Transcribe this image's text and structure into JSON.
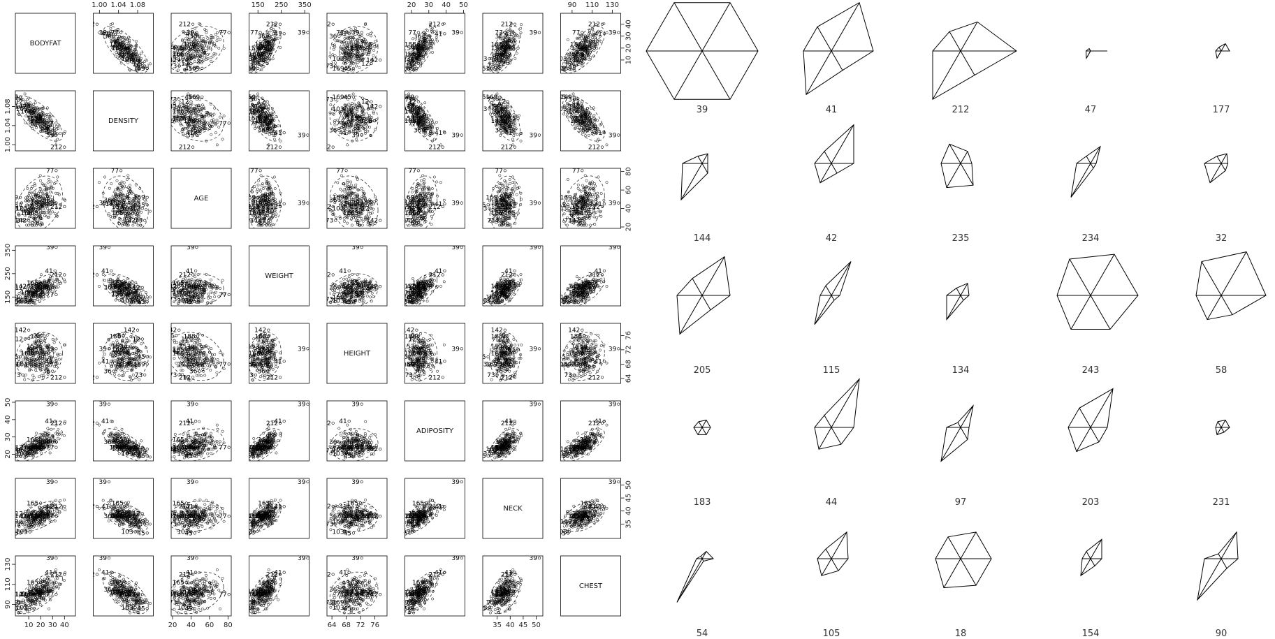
{
  "chart_data": [
    {
      "type": "scatter",
      "variables": [
        "BODYFAT",
        "DENSITY",
        "AGE",
        "WEIGHT",
        "HEIGHT",
        "ADIPOSITY",
        "NECK",
        "CHEST"
      ],
      "diagonal_labels": [
        "BODYFAT",
        "DENSITY",
        "AGE",
        "WEIGHT",
        "HEIGHT",
        "ADIPOSITY",
        "NECK",
        "CHEST"
      ],
      "ranges": {
        "BODYFAT": [
          0,
          48
        ],
        "DENSITY": [
          0.99,
          1.11
        ],
        "AGE": [
          20,
          82
        ],
        "WEIGHT": [
          118,
          363
        ],
        "HEIGHT": [
          63,
          79
        ],
        "ADIPOSITY": [
          17,
          50
        ],
        "NECK": [
          30,
          52
        ],
        "CHEST": [
          80,
          137
        ]
      },
      "ticks": {
        "BODYFAT": [
          10,
          20,
          30,
          40
        ],
        "DENSITY": [
          1.0,
          1.04,
          1.08
        ],
        "AGE": [
          20,
          40,
          60,
          80
        ],
        "WEIGHT": [
          150,
          250,
          350
        ],
        "HEIGHT": [
          64,
          68,
          72,
          76
        ],
        "ADIPOSITY": [
          20,
          30,
          40,
          50
        ],
        "NECK": [
          35,
          40,
          45,
          50
        ],
        "CHEST": [
          90,
          110,
          130
        ]
      },
      "tick_labels": {
        "top": [
          "1.00",
          "1.04",
          "1.08",
          "150",
          "250",
          "350",
          "20",
          "30",
          "40",
          "50",
          "90",
          "110",
          "130"
        ],
        "right": [
          "10",
          "20",
          "30",
          "40",
          "20",
          "40",
          "60",
          "80",
          "64",
          "68",
          "72",
          "76",
          "35",
          "40",
          "45",
          "50"
        ],
        "left": [
          "1.00",
          "1.04",
          "1.08",
          "150",
          "250",
          "350",
          "20",
          "30",
          "40",
          "50",
          "90",
          "110",
          "130"
        ],
        "bottom": [
          "10",
          "20",
          "30",
          "40",
          "20",
          "40",
          "60",
          "80",
          "64",
          "68",
          "72",
          "76",
          "35",
          "40",
          "45",
          "50"
        ]
      },
      "point_labels": [
        "39",
        "41",
        "212",
        "36",
        "188",
        "77",
        "169",
        "12",
        "142",
        "166",
        "73",
        "45",
        "103",
        "165",
        "153",
        "6"
      ],
      "labeled_points": [
        {
          "label": "39",
          "BODYFAT": 33,
          "DENSITY": 1.02,
          "AGE": 46,
          "WEIGHT": 363,
          "HEIGHT": 72.3,
          "ADIPOSITY": 48.9,
          "NECK": 51.2,
          "CHEST": 136.2
        },
        {
          "label": "41",
          "BODYFAT": 32,
          "DENSITY": 1.025,
          "AGE": 45,
          "WEIGHT": 262,
          "HEIGHT": 68.8,
          "ADIPOSITY": 39.1,
          "NECK": 41.7,
          "CHEST": 122
        },
        {
          "label": "212",
          "BODYFAT": 40,
          "DENSITY": 0.995,
          "AGE": 42,
          "WEIGHT": 245,
          "HEIGHT": 64.3,
          "ADIPOSITY": 38,
          "NECK": 41.8,
          "CHEST": 120
        },
        {
          "label": "36",
          "BODYFAT": 30,
          "DENSITY": 1.03,
          "AGE": 49,
          "WEIGHT": 191,
          "HEIGHT": 66,
          "ADIPOSITY": 27,
          "NECK": 38,
          "CHEST": 105
        },
        {
          "label": "188",
          "BODYFAT": 23,
          "DENSITY": 1.05,
          "AGE": 47,
          "WEIGHT": 196,
          "HEIGHT": 75.8,
          "ADIPOSITY": 24,
          "NECK": 38,
          "CHEST": 102
        },
        {
          "label": "77",
          "BODYFAT": 33,
          "DENSITY": 1.045,
          "AGE": 81,
          "WEIGHT": 160,
          "HEIGHT": 68,
          "ADIPOSITY": 24,
          "NECK": 38,
          "CHEST": 100
        },
        {
          "label": "169",
          "BODYFAT": 3,
          "DENSITY": 1.1,
          "AGE": 52,
          "WEIGHT": 150,
          "HEIGHT": 68,
          "ADIPOSITY": 23,
          "NECK": 36,
          "CHEST": 92
        },
        {
          "label": "12",
          "BODYFAT": 7,
          "DENSITY": 1.09,
          "AGE": 40,
          "WEIGHT": 190,
          "HEIGHT": 75,
          "ADIPOSITY": 24,
          "NECK": 39,
          "CHEST": 100
        },
        {
          "label": "142",
          "BODYFAT": 10,
          "DENSITY": 1.08,
          "AGE": 27,
          "WEIGHT": 195,
          "HEIGHT": 77.5,
          "ADIPOSITY": 23,
          "NECK": 38,
          "CHEST": 100
        },
        {
          "label": "166",
          "BODYFAT": 15,
          "DENSITY": 1.07,
          "AGE": 35,
          "WEIGHT": 170,
          "HEIGHT": 71,
          "ADIPOSITY": 24,
          "NECK": 38,
          "CHEST": 100
        },
        {
          "label": "73",
          "BODYFAT": 5,
          "DENSITY": 1.095,
          "AGE": 27,
          "WEIGHT": 140,
          "HEIGHT": 65,
          "ADIPOSITY": 22,
          "NECK": 35,
          "CHEST": 92
        },
        {
          "label": "45",
          "BODYFAT": 3,
          "DENSITY": 1.1,
          "AGE": 44,
          "WEIGHT": 130,
          "HEIGHT": 70,
          "ADIPOSITY": 19,
          "NECK": 31.5,
          "CHEST": 86
        },
        {
          "label": "103",
          "BODYFAT": 11,
          "DENSITY": 1.075,
          "AGE": 40,
          "WEIGHT": 135,
          "HEIGHT": 68,
          "ADIPOSITY": 20.5,
          "NECK": 32,
          "CHEST": 87
        },
        {
          "label": "165",
          "BODYFAT": 20,
          "DENSITY": 1.055,
          "AGE": 35,
          "WEIGHT": 210,
          "HEIGHT": 72,
          "ADIPOSITY": 28.5,
          "NECK": 43,
          "CHEST": 112
        },
        {
          "label": "153",
          "BODYFAT": 20,
          "DENSITY": 1.055,
          "AGE": 42,
          "WEIGHT": 165,
          "HEIGHT": 73,
          "ADIPOSITY": 23,
          "NECK": 38,
          "CHEST": 103
        },
        {
          "label": "6",
          "BODYFAT": 21,
          "DENSITY": 1.05,
          "AGE": 24,
          "WEIGHT": 180,
          "HEIGHT": 76,
          "ADIPOSITY": 23,
          "NECK": 39,
          "CHEST": 102
        }
      ],
      "ellipses": "dashed concentration ellipses in every off-diagonal panel",
      "grid": false
    },
    {
      "type": "star",
      "labels": [
        "39",
        "41",
        "212",
        "47",
        "177",
        "144",
        "42",
        "235",
        "234",
        "32",
        "205",
        "115",
        "134",
        "243",
        "58",
        "183",
        "44",
        "97",
        "203",
        "231",
        "54",
        "105",
        "18",
        "154",
        "90"
      ],
      "rays": [
        "r1",
        "r2",
        "r3",
        "r4",
        "r5",
        "r6"
      ],
      "stars": [
        {
          "label": "39",
          "values": [
            1.0,
            1.0,
            1.0,
            1.0,
            1.0,
            1.0
          ]
        },
        {
          "label": "41",
          "values": [
            0.75,
            1.0,
            0.5,
            0.5,
            0.9,
            0.4
          ]
        },
        {
          "label": "212",
          "values": [
            1.0,
            0.6,
            0.4,
            0.5,
            1.0,
            0.5
          ]
        },
        {
          "label": "47",
          "values": [
            0.3,
            0.0,
            0.05,
            0.08,
            0.15,
            0.0
          ]
        },
        {
          "label": "177",
          "values": [
            0.15,
            0.15,
            0.08,
            0.1,
            0.15,
            0.0
          ]
        },
        {
          "label": "144",
          "values": [
            0.1,
            0.2,
            0.15,
            0.35,
            0.75,
            0.2
          ]
        },
        {
          "label": "42",
          "values": [
            0.4,
            0.8,
            0.25,
            0.3,
            0.4,
            0.2
          ]
        },
        {
          "label": "235",
          "values": [
            0.2,
            0.25,
            0.4,
            0.35,
            0.5,
            0.45
          ]
        },
        {
          "label": "234",
          "values": [
            0.1,
            0.35,
            0.15,
            0.25,
            0.7,
            0.1
          ]
        },
        {
          "label": "32",
          "values": [
            0.12,
            0.2,
            0.15,
            0.3,
            0.4,
            0.15
          ]
        },
        {
          "label": "205",
          "values": [
            0.5,
            0.8,
            0.35,
            0.45,
            0.8,
            0.3
          ]
        },
        {
          "label": "115",
          "values": [
            0.15,
            0.7,
            0.2,
            0.2,
            0.6,
            0.1
          ]
        },
        {
          "label": "134",
          "values": [
            0.15,
            0.25,
            0.15,
            0.25,
            0.5,
            0.1
          ]
        },
        {
          "label": "243",
          "values": [
            0.85,
            0.85,
            0.75,
            0.6,
            0.7,
            0.7
          ]
        },
        {
          "label": "58",
          "values": [
            0.8,
            0.9,
            0.7,
            0.45,
            0.5,
            0.4
          ]
        },
        {
          "label": "183",
          "values": [
            0.15,
            0.15,
            0.12,
            0.15,
            0.15,
            0.15
          ]
        },
        {
          "label": "44",
          "values": [
            0.4,
            1.0,
            0.25,
            0.3,
            0.45,
            0.35
          ]
        },
        {
          "label": "97",
          "values": [
            0.15,
            0.45,
            0.1,
            0.25,
            0.7,
            0.25
          ]
        },
        {
          "label": "203",
          "values": [
            0.3,
            0.8,
            0.4,
            0.4,
            0.5,
            0.3
          ]
        },
        {
          "label": "231",
          "values": [
            0.15,
            0.15,
            0.12,
            0.1,
            0.15,
            0.1
          ]
        },
        {
          "label": "54",
          "values": [
            0.2,
            0.15,
            0.05,
            0.1,
            0.9,
            0.05
          ]
        },
        {
          "label": "105",
          "values": [
            0.3,
            0.55,
            0.2,
            0.25,
            0.35,
            0.25
          ]
        },
        {
          "label": "18",
          "values": [
            0.55,
            0.55,
            0.45,
            0.45,
            0.6,
            0.55
          ]
        },
        {
          "label": "154",
          "values": [
            0.2,
            0.4,
            0.15,
            0.15,
            0.35,
            0.15
          ]
        },
        {
          "label": "90",
          "values": [
            0.3,
            0.55,
            0.1,
            0.3,
            0.85,
            0.2
          ]
        }
      ]
    }
  ]
}
